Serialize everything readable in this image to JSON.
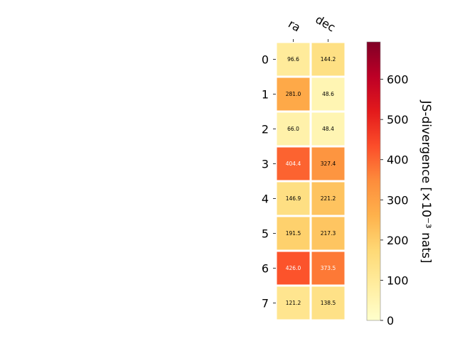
{
  "chart_data": {
    "type": "heatmap",
    "columns": [
      "ra",
      "dec"
    ],
    "rows": [
      "0",
      "1",
      "2",
      "3",
      "4",
      "5",
      "6",
      "7"
    ],
    "values": [
      [
        96.6,
        144.2
      ],
      [
        281.0,
        48.6
      ],
      [
        66.0,
        48.4
      ],
      [
        404.4,
        327.4
      ],
      [
        146.9,
        221.2
      ],
      [
        191.5,
        217.3
      ],
      [
        426.0,
        373.5
      ],
      [
        121.2,
        138.5
      ]
    ],
    "cell_labels": [
      [
        "96.6",
        "144.2"
      ],
      [
        "281.0",
        "48.6"
      ],
      [
        "66.0",
        "48.4"
      ],
      [
        "404.4",
        "327.4"
      ],
      [
        "146.9",
        "221.2"
      ],
      [
        "191.5",
        "217.3"
      ],
      [
        "426.0",
        "373.5"
      ],
      [
        "121.2",
        "138.5"
      ]
    ],
    "colorbar": {
      "label": "JS-divergence [×10⁻³ nats]",
      "range": [
        0,
        693
      ],
      "ticks": [
        0,
        100,
        200,
        300,
        400,
        500,
        600
      ],
      "tick_labels": [
        "0",
        "100",
        "200",
        "300",
        "400",
        "500",
        "600"
      ],
      "colormap": "YlOrRd"
    }
  }
}
